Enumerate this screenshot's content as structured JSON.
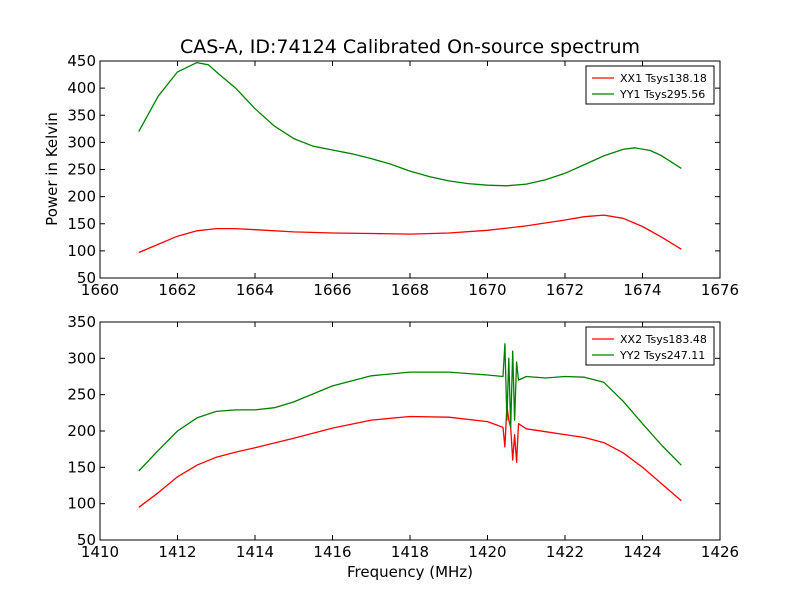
{
  "title": "CAS-A, ID:74124 Calibrated On-source spectrum",
  "xlabel": "Frequency (MHz)",
  "ylabel": "Power in Kelvin",
  "colors": {
    "xx": "#ff0000",
    "yy": "#008000"
  },
  "chart_data": [
    {
      "type": "line",
      "xlim": [
        1660,
        1676
      ],
      "ylim": [
        50,
        450
      ],
      "xticks": [
        "1660",
        "1662",
        "1664",
        "1666",
        "1668",
        "1670",
        "1672",
        "1674",
        "1676"
      ],
      "yticks": [
        "50",
        "100",
        "150",
        "200",
        "250",
        "300",
        "350",
        "400",
        "450"
      ],
      "legend_position": "top-right",
      "series": [
        {
          "name": "XX1 Tsys138.18",
          "color": "#ff0000",
          "x": [
            1661.0,
            1661.5,
            1662.0,
            1662.5,
            1663.0,
            1663.5,
            1664.0,
            1665.0,
            1666.0,
            1667.0,
            1668.0,
            1669.0,
            1670.0,
            1671.0,
            1672.0,
            1672.5,
            1673.0,
            1673.5,
            1674.0,
            1674.5,
            1675.0
          ],
          "y": [
            97,
            112,
            127,
            137,
            141,
            141,
            139,
            135,
            133,
            132,
            131,
            133,
            138,
            146,
            157,
            163,
            166,
            160,
            145,
            125,
            103
          ]
        },
        {
          "name": "YY1 Tsys295.56",
          "color": "#008000",
          "x": [
            1661.0,
            1661.5,
            1662.0,
            1662.5,
            1662.8,
            1663.0,
            1663.5,
            1664.0,
            1664.5,
            1665.0,
            1665.5,
            1666.0,
            1666.5,
            1667.0,
            1667.5,
            1668.0,
            1668.5,
            1669.0,
            1669.5,
            1670.0,
            1670.5,
            1671.0,
            1671.5,
            1672.0,
            1672.5,
            1673.0,
            1673.5,
            1673.8,
            1674.2,
            1674.5,
            1675.0
          ],
          "y": [
            320,
            385,
            430,
            447,
            443,
            430,
            400,
            362,
            330,
            307,
            293,
            286,
            279,
            270,
            260,
            247,
            237,
            229,
            224,
            221,
            220,
            223,
            231,
            243,
            259,
            275,
            287,
            290,
            285,
            275,
            252
          ]
        }
      ]
    },
    {
      "type": "line",
      "xlim": [
        1410,
        1426
      ],
      "ylim": [
        50,
        350
      ],
      "xticks": [
        "1410",
        "1412",
        "1414",
        "1416",
        "1418",
        "1420",
        "1422",
        "1424",
        "1426"
      ],
      "yticks": [
        "50",
        "100",
        "150",
        "200",
        "250",
        "300",
        "350"
      ],
      "legend_position": "top-right",
      "series": [
        {
          "name": "XX2 Tsys183.48",
          "color": "#ff0000",
          "x": [
            1411.0,
            1411.5,
            1412.0,
            1412.5,
            1413.0,
            1413.5,
            1414.0,
            1415.0,
            1416.0,
            1417.0,
            1418.0,
            1419.0,
            1420.0,
            1420.4,
            1420.45,
            1420.5,
            1420.55,
            1420.6,
            1420.65,
            1420.7,
            1420.75,
            1420.8,
            1421.0,
            1421.5,
            1422.0,
            1422.5,
            1423.0,
            1423.5,
            1424.0,
            1424.5,
            1425.0
          ],
          "y": [
            95,
            115,
            137,
            153,
            164,
            171,
            177,
            190,
            204,
            215,
            220,
            219,
            213,
            205,
            178,
            235,
            215,
            205,
            160,
            195,
            157,
            210,
            203,
            199,
            195,
            191,
            184,
            170,
            150,
            127,
            104
          ]
        },
        {
          "name": "YY2 Tsys247.11",
          "color": "#008000",
          "x": [
            1411.0,
            1411.5,
            1412.0,
            1412.5,
            1413.0,
            1413.5,
            1414.0,
            1414.5,
            1415.0,
            1416.0,
            1417.0,
            1418.0,
            1419.0,
            1420.0,
            1420.4,
            1420.45,
            1420.5,
            1420.55,
            1420.6,
            1420.65,
            1420.7,
            1420.75,
            1420.8,
            1421.0,
            1421.5,
            1422.0,
            1422.5,
            1423.0,
            1423.5,
            1424.0,
            1424.5,
            1425.0
          ],
          "y": [
            145,
            173,
            200,
            218,
            227,
            229,
            229,
            232,
            240,
            262,
            276,
            281,
            281,
            277,
            275,
            320,
            215,
            300,
            205,
            310,
            215,
            295,
            270,
            275,
            273,
            275,
            274,
            267,
            241,
            210,
            180,
            153
          ]
        }
      ]
    }
  ]
}
